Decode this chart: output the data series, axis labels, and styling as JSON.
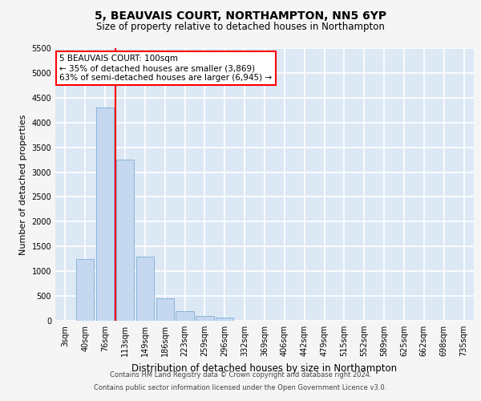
{
  "title": "5, BEAUVAIS COURT, NORTHAMPTON, NN5 6YP",
  "subtitle": "Size of property relative to detached houses in Northampton",
  "xlabel": "Distribution of detached houses by size in Northampton",
  "ylabel": "Number of detached properties",
  "footer_line1": "Contains HM Land Registry data © Crown copyright and database right 2024.",
  "footer_line2": "Contains public sector information licensed under the Open Government Licence v3.0.",
  "annotation_line1": "5 BEAUVAIS COURT: 100sqm",
  "annotation_line2": "← 35% of detached houses are smaller (3,869)",
  "annotation_line3": "63% of semi-detached houses are larger (6,945) →",
  "bar_categories": [
    "3sqm",
    "40sqm",
    "76sqm",
    "113sqm",
    "149sqm",
    "186sqm",
    "223sqm",
    "259sqm",
    "296sqm",
    "332sqm",
    "369sqm",
    "406sqm",
    "442sqm",
    "479sqm",
    "515sqm",
    "552sqm",
    "589sqm",
    "625sqm",
    "662sqm",
    "698sqm",
    "735sqm"
  ],
  "bar_values": [
    0,
    1250,
    4300,
    3250,
    1300,
    450,
    200,
    100,
    60,
    0,
    0,
    0,
    0,
    0,
    0,
    0,
    0,
    0,
    0,
    0,
    0
  ],
  "bar_color": "#c5d8f0",
  "bar_edge_color": "#7aaed6",
  "vline_x": 2.5,
  "vline_color": "red",
  "ylim": [
    0,
    5500
  ],
  "yticks": [
    0,
    500,
    1000,
    1500,
    2000,
    2500,
    3000,
    3500,
    4000,
    4500,
    5000,
    5500
  ],
  "bg_color": "#dde8f5",
  "fig_bg_color": "#f5f5f5",
  "grid_color": "#ffffff",
  "title_fontsize": 10,
  "subtitle_fontsize": 8.5,
  "annotation_fontsize": 7.5,
  "ylabel_fontsize": 8,
  "xlabel_fontsize": 8.5,
  "tick_fontsize": 7,
  "footer_fontsize": 6
}
